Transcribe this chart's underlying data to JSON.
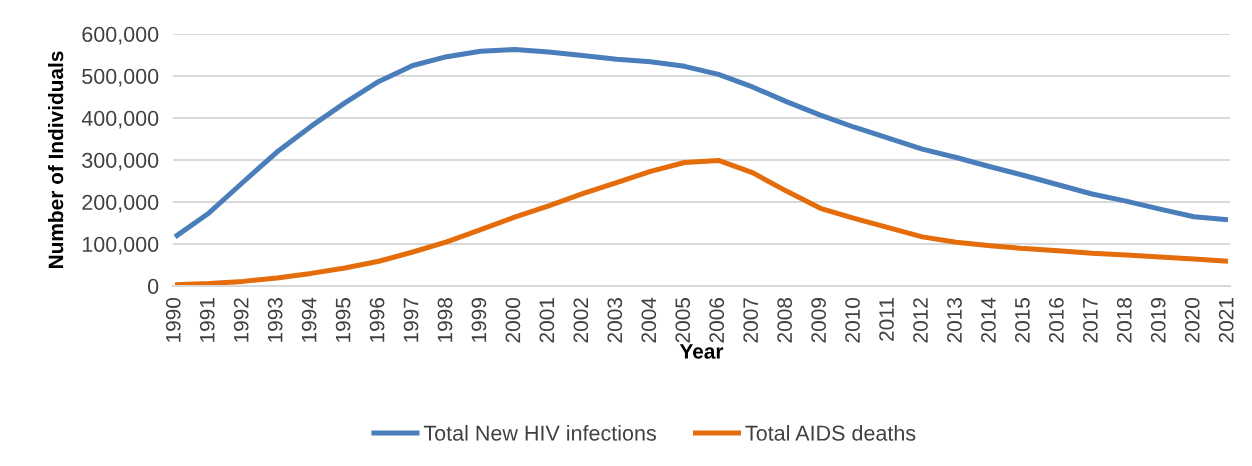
{
  "chart_data": {
    "type": "line",
    "xlabel": "Year",
    "ylabel": "Number of Individuals",
    "categories": [
      "1990",
      "1991",
      "1992",
      "1993",
      "1994",
      "1995",
      "1996",
      "1997",
      "1998",
      "1999",
      "2000",
      "2001",
      "2002",
      "2003",
      "2004",
      "2005",
      "2006",
      "2007",
      "2008",
      "2009",
      "2010",
      "2011",
      "2012",
      "2013",
      "2014",
      "2015",
      "2016",
      "2017",
      "2018",
      "2019",
      "2020",
      "2021"
    ],
    "series": [
      {
        "name": "Total New HIV infections",
        "color": "#4a7ebb",
        "values": [
          117000,
          174000,
          247000,
          319000,
          380000,
          436000,
          487000,
          525000,
          546000,
          559000,
          563000,
          557000,
          549000,
          540000,
          534000,
          523000,
          504000,
          474000,
          439000,
          407000,
          378000,
          352000,
          326000,
          306000,
          284000,
          263000,
          241000,
          219000,
          202000,
          183000,
          165000,
          158000
        ]
      },
      {
        "name": "Total AIDS deaths",
        "color": "#e46c0a",
        "values": [
          3000,
          6000,
          11000,
          19000,
          30000,
          43000,
          59000,
          81000,
          105000,
          134000,
          164000,
          191000,
          220000,
          246000,
          273000,
          294000,
          299000,
          270000,
          226000,
          185000,
          161000,
          139000,
          117000,
          104000,
          96000,
          89000,
          84000,
          78000,
          74000,
          69000,
          64000,
          59000
        ]
      }
    ],
    "ylim": [
      0,
      600000
    ],
    "yticks": [
      0,
      {
        "value": 100000,
        "label": "100,000"
      },
      {
        "value": 200000,
        "label": "200,000"
      },
      {
        "value": 300000,
        "label": "300,000"
      },
      {
        "value": 400000,
        "label": "400,000"
      },
      {
        "value": 500000,
        "label": "500,000"
      },
      {
        "value": 600000,
        "label": "600,000"
      }
    ],
    "grid": "y",
    "legend": "bottom"
  }
}
